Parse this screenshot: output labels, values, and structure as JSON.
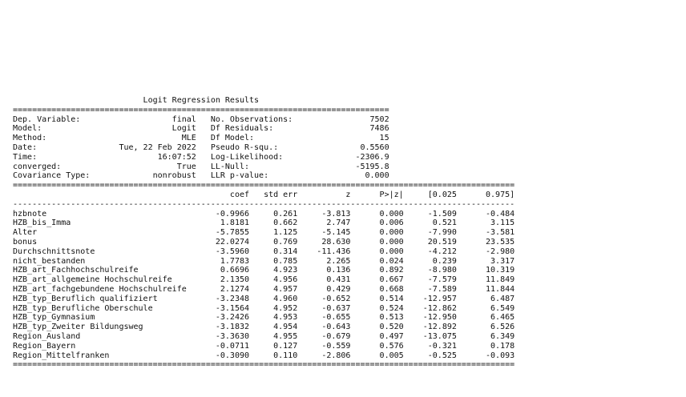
{
  "summary": {
    "title": "Logit Regression Results",
    "info": [
      {
        "left_label": "Dep. Variable:",
        "left_value": "final",
        "right_label": "No. Observations:",
        "right_value": "7502"
      },
      {
        "left_label": "Model:",
        "left_value": "Logit",
        "right_label": "Df Residuals:",
        "right_value": "7486"
      },
      {
        "left_label": "Method:",
        "left_value": "MLE",
        "right_label": "Df Model:",
        "right_value": "15"
      },
      {
        "left_label": "Date:",
        "left_value": "Tue, 22 Feb 2022",
        "right_label": "Pseudo R-squ.:",
        "right_value": "0.5560"
      },
      {
        "left_label": "Time:",
        "left_value": "16:07:52",
        "right_label": "Log-Likelihood:",
        "right_value": "-2306.9"
      },
      {
        "left_label": "converged:",
        "left_value": "True",
        "right_label": "LL-Null:",
        "right_value": "-5195.8"
      },
      {
        "left_label": "Covariance Type:",
        "left_value": "nonrobust",
        "right_label": "LLR p-value:",
        "right_value": "0.000"
      }
    ],
    "coef_headers": [
      "",
      "coef",
      "std err",
      "z",
      "P>|z|",
      "[0.025",
      "0.975]"
    ],
    "coef_rows": [
      [
        "hzbnote",
        "-0.9966",
        "0.261",
        "-3.813",
        "0.000",
        "-1.509",
        "-0.484"
      ],
      [
        "HZB_bis_Imma",
        "1.8181",
        "0.662",
        "2.747",
        "0.006",
        "0.521",
        "3.115"
      ],
      [
        "Alter",
        "-5.7855",
        "1.125",
        "-5.145",
        "0.000",
        "-7.990",
        "-3.581"
      ],
      [
        "bonus",
        "22.0274",
        "0.769",
        "28.630",
        "0.000",
        "20.519",
        "23.535"
      ],
      [
        "Durchschnittsnote",
        "-3.5960",
        "0.314",
        "-11.436",
        "0.000",
        "-4.212",
        "-2.980"
      ],
      [
        "nicht_bestanden",
        "1.7783",
        "0.785",
        "2.265",
        "0.024",
        "0.239",
        "3.317"
      ],
      [
        "HZB_art_Fachhochschulreife",
        "0.6696",
        "4.923",
        "0.136",
        "0.892",
        "-8.980",
        "10.319"
      ],
      [
        "HZB_art_allgemeine Hochschulreife",
        "2.1350",
        "4.956",
        "0.431",
        "0.667",
        "-7.579",
        "11.849"
      ],
      [
        "HZB_art_fachgebundene Hochschulreife",
        "2.1274",
        "4.957",
        "0.429",
        "0.668",
        "-7.589",
        "11.844"
      ],
      [
        "HZB_typ_Beruflich qualifiziert",
        "-3.2348",
        "4.960",
        "-0.652",
        "0.514",
        "-12.957",
        "6.487"
      ],
      [
        "HZB_typ_Berufliche Oberschule",
        "-3.1564",
        "4.952",
        "-0.637",
        "0.524",
        "-12.862",
        "6.549"
      ],
      [
        "HZB_typ_Gymnasium",
        "-3.2426",
        "4.953",
        "-0.655",
        "0.513",
        "-12.950",
        "6.465"
      ],
      [
        "HZB_typ_Zweiter Bildungsweg",
        "-3.1832",
        "4.954",
        "-0.643",
        "0.520",
        "-12.892",
        "6.526"
      ],
      [
        "Region_Ausland",
        "-3.3630",
        "4.955",
        "-0.679",
        "0.497",
        "-13.075",
        "6.349"
      ],
      [
        "Region_Bayern",
        "-0.0711",
        "0.127",
        "-0.559",
        "0.576",
        "-0.321",
        "0.178"
      ],
      [
        "Region_Mittelfranken",
        "-0.3090",
        "0.110",
        "-2.806",
        "0.005",
        "-0.525",
        "-0.093"
      ]
    ]
  }
}
